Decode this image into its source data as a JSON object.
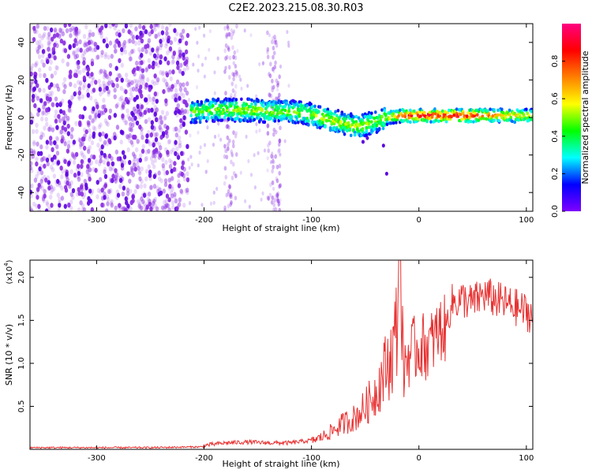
{
  "title": "C2E2.2023.215.08.30.R03",
  "colors": {
    "background": "#ffffff",
    "snr_line": "#e83232",
    "spectrogram_bg_speckle": "#8a2be2"
  },
  "chart_data": [
    {
      "type": "heatmap",
      "xlabel": "Height of straight line (km)",
      "ylabel": "Frequency (Hz)",
      "xlim": [
        -362,
        106
      ],
      "ylim": [
        -50,
        50
      ],
      "xticks": [
        -300,
        -200,
        -100,
        0,
        100
      ],
      "yticks": [
        -40,
        -20,
        0,
        20,
        40
      ],
      "colorbar": {
        "label": "Normalized spectral amplitude",
        "range": [
          0,
          1
        ],
        "ticks": [
          "0.0",
          "0.2",
          "0.4",
          "0.6",
          "0.8"
        ],
        "colormap": [
          "#8000ff",
          "#0000ff",
          "#00ffff",
          "#00ff00",
          "#ffff00",
          "#ff8000",
          "#ff0000",
          "#ff0080"
        ]
      },
      "signal_band": [
        {
          "x": -212,
          "f": 3,
          "amp": 0.45
        },
        {
          "x": -190,
          "f": 4,
          "amp": 0.5
        },
        {
          "x": -160,
          "f": 4,
          "amp": 0.55
        },
        {
          "x": -130,
          "f": 3,
          "amp": 0.5
        },
        {
          "x": -110,
          "f": 3,
          "amp": 0.5
        },
        {
          "x": -90,
          "f": 0,
          "amp": 0.55
        },
        {
          "x": -70,
          "f": -3,
          "amp": 0.55
        },
        {
          "x": -55,
          "f": -5,
          "amp": 0.55
        },
        {
          "x": -40,
          "f": -2,
          "amp": 0.5
        },
        {
          "x": -28,
          "f": 0,
          "amp": 0.6
        },
        {
          "x": -15,
          "f": 1,
          "amp": 0.8
        },
        {
          "x": 0,
          "f": 1,
          "amp": 0.9
        },
        {
          "x": 40,
          "f": 1,
          "amp": 0.9
        },
        {
          "x": 80,
          "f": 1,
          "amp": 0.7
        },
        {
          "x": 106,
          "f": 1,
          "amp": 0.6
        }
      ],
      "noise_columns_x": [
        -175,
        -135
      ]
    },
    {
      "type": "line",
      "xlabel": "Height of straight line (km)",
      "ylabel": "SNR (10 * v/v)",
      "y_multiplier": "(x10",
      "y_multiplier_exp": "4",
      "y_multiplier_close": ")",
      "xlim": [
        -362,
        106
      ],
      "ylim": [
        0,
        2.2
      ],
      "xticks": [
        -300,
        -200,
        -100,
        0,
        100
      ],
      "yticks": [
        0.5,
        1.0,
        1.5,
        2.0
      ],
      "ytick_labels": [
        "0.5",
        "1.0",
        "1.5",
        "2.0"
      ],
      "series": [
        {
          "x": [
            -362,
            -300,
            -250,
            -200,
            -180,
            -160,
            -140,
            -120,
            -100,
            -90,
            -80,
            -70,
            -60,
            -50,
            -40,
            -30,
            -25,
            -20,
            -18,
            -15,
            -10,
            0,
            10,
            20,
            25,
            30,
            40,
            50,
            60,
            70,
            80,
            90,
            100,
            106
          ],
          "y": [
            0.01,
            0.01,
            0.01,
            0.02,
            0.05,
            0.06,
            0.05,
            0.05,
            0.08,
            0.12,
            0.18,
            0.25,
            0.3,
            0.4,
            0.55,
            0.8,
            0.9,
            1.2,
            2.2,
            0.9,
            1.1,
            1.2,
            1.2,
            1.4,
            1.4,
            1.7,
            1.75,
            1.7,
            1.8,
            1.75,
            1.7,
            1.65,
            1.6,
            1.55
          ]
        }
      ]
    }
  ]
}
